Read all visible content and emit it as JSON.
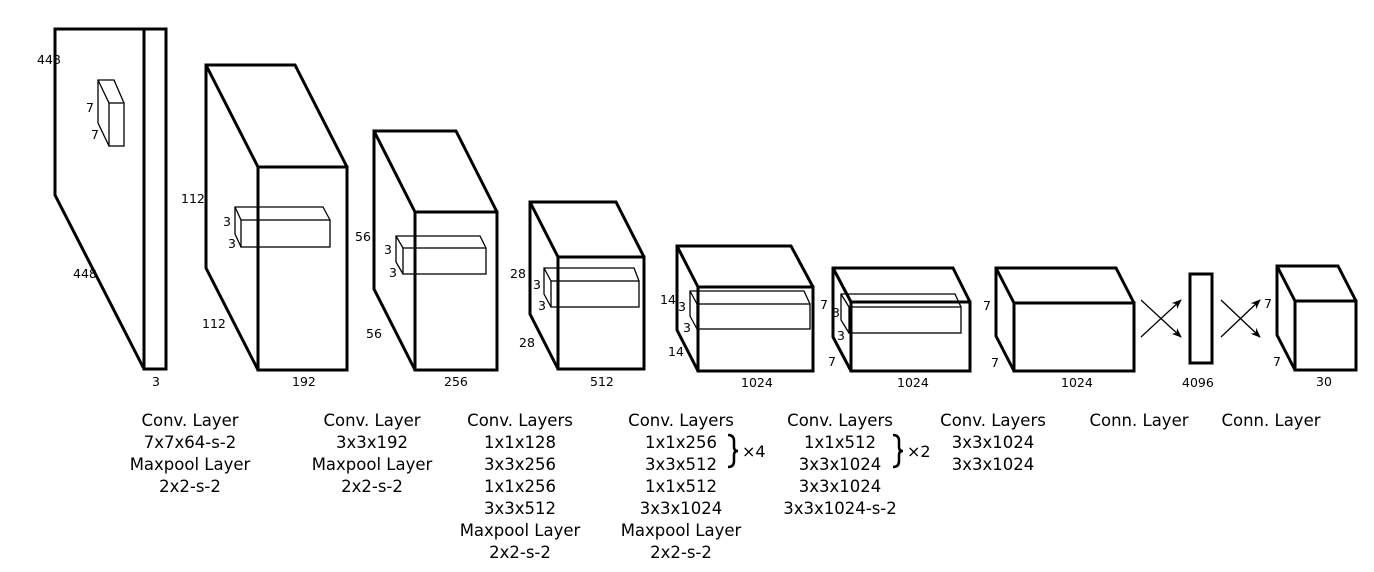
{
  "layers": [
    {
      "name": "input",
      "dims": [
        "448",
        "448",
        "3"
      ],
      "kernel": [
        "7",
        "7"
      ]
    },
    {
      "name": "conv1",
      "dims": [
        "112",
        "112",
        "192"
      ],
      "kernel": [
        "3",
        "3"
      ]
    },
    {
      "name": "conv2",
      "dims": [
        "56",
        "56",
        "256"
      ],
      "kernel": [
        "3",
        "3"
      ]
    },
    {
      "name": "conv3",
      "dims": [
        "28",
        "28",
        "512"
      ],
      "kernel": [
        "3",
        "3"
      ]
    },
    {
      "name": "conv4",
      "dims": [
        "14",
        "14",
        "1024"
      ],
      "kernel": [
        "3",
        "3"
      ]
    },
    {
      "name": "conv5",
      "dims": [
        "7",
        "7",
        "1024"
      ],
      "kernel": [
        "3",
        "3"
      ]
    },
    {
      "name": "conv6",
      "dims": [
        "7",
        "7",
        "1024"
      ]
    },
    {
      "name": "fc1",
      "dims": [
        "4096"
      ]
    },
    {
      "name": "output",
      "dims": [
        "7",
        "7",
        "30"
      ]
    }
  ],
  "captions": [
    {
      "lines": [
        "Conv. Layer",
        "7x7x64-s-2",
        "Maxpool Layer",
        "2x2-s-2"
      ]
    },
    {
      "lines": [
        "Conv. Layer",
        "3x3x192",
        "Maxpool Layer",
        "2x2-s-2"
      ]
    },
    {
      "lines": [
        "Conv. Layers",
        "1x1x128",
        "3x3x256",
        "1x1x256",
        "3x3x512",
        "Maxpool Layer",
        "2x2-s-2"
      ]
    },
    {
      "lines": [
        "Conv. Layers",
        "1x1x256",
        "3x3x512",
        "1x1x512",
        "3x3x1024",
        "Maxpool Layer",
        "2x2-s-2"
      ],
      "repeat": "×4"
    },
    {
      "lines": [
        "Conv. Layers",
        "1x1x512",
        "3x3x1024",
        "3x3x1024",
        "3x3x1024-s-2"
      ],
      "repeat": "×2"
    },
    {
      "lines": [
        "Conv. Layers",
        "3x3x1024",
        "3x3x1024"
      ]
    },
    {
      "lines": [
        "Conn. Layer"
      ]
    },
    {
      "lines": [
        "Conn. Layer"
      ]
    }
  ],
  "colors": {
    "stroke": "#000000",
    "background": "#ffffff"
  }
}
